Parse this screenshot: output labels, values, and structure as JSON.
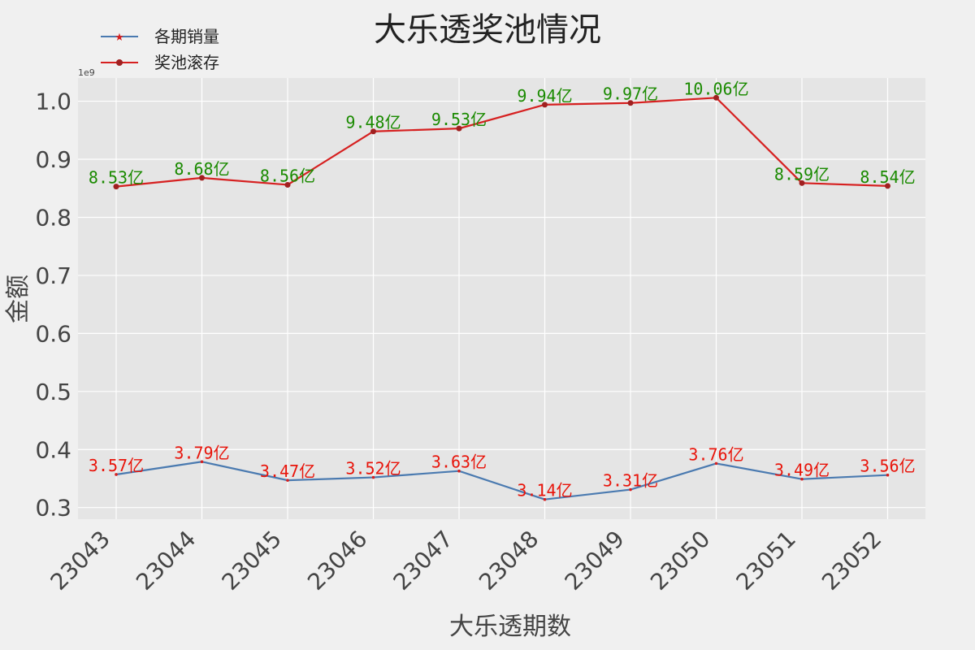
{
  "chart_data": {
    "type": "line",
    "title": "大乐透奖池情况",
    "xlabel": "大乐透期数",
    "ylabel": "金额",
    "y_offset_label": "1e9",
    "categories": [
      "23043",
      "23044",
      "23045",
      "23046",
      "23047",
      "23048",
      "23049",
      "23050",
      "23051",
      "23052"
    ],
    "ylim": [
      0.28,
      1.04
    ],
    "yticks": [
      0.3,
      0.4,
      0.5,
      0.6,
      0.7,
      0.8,
      0.9,
      1.0
    ],
    "ytick_labels": [
      "0.3",
      "0.4",
      "0.5",
      "0.6",
      "0.7",
      "0.8",
      "0.9",
      "1.0"
    ],
    "grid": true,
    "legend_position": "top-left",
    "series": [
      {
        "name": "各期销量",
        "color": "#4a7ab0",
        "marker": "star",
        "values": [
          0.357,
          0.379,
          0.347,
          0.352,
          0.363,
          0.314,
          0.331,
          0.376,
          0.349,
          0.356
        ],
        "labels": [
          "3.57亿",
          "3.79亿",
          "3.47亿",
          "3.52亿",
          "3.63亿",
          "3.14亿",
          "3.31亿",
          "3.76亿",
          "3.49亿",
          "3.56亿"
        ],
        "label_color": "#e8140a"
      },
      {
        "name": "奖池滚存",
        "color": "#d62020",
        "marker": "circle",
        "values": [
          0.853,
          0.868,
          0.856,
          0.948,
          0.953,
          0.994,
          0.997,
          1.006,
          0.859,
          0.854
        ],
        "labels": [
          "8.53亿",
          "8.68亿",
          "8.56亿",
          "9.48亿",
          "9.53亿",
          "9.94亿",
          "9.97亿",
          "10.06亿",
          "8.59亿",
          "8.54亿"
        ],
        "label_color": "#1a8a00"
      }
    ]
  }
}
